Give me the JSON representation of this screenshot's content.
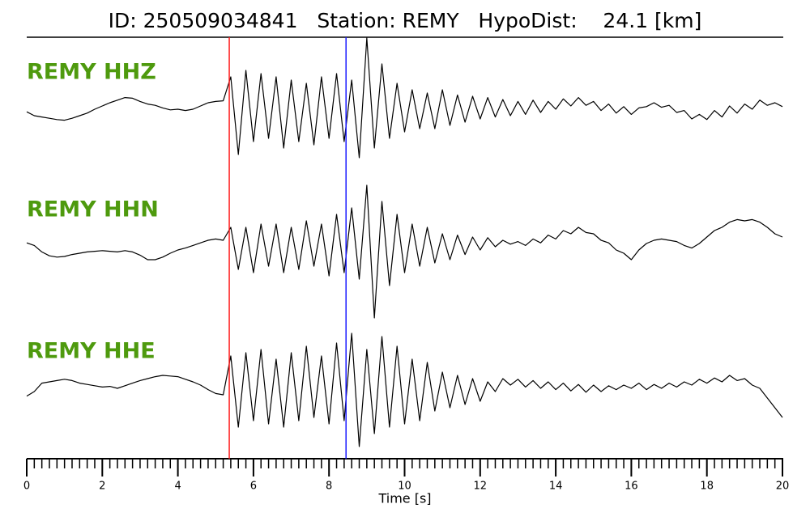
{
  "chart_data": {
    "type": "line",
    "title": "ID: 250509034841   Station: REMY   HypoDist:    24.1 [km]",
    "xlabel": "Time [s]",
    "xlim": [
      0,
      20
    ],
    "xticks": [
      0,
      2,
      4,
      6,
      8,
      10,
      12,
      14,
      16,
      18,
      20
    ],
    "xminor_step": 0.2,
    "label_color": "#4e9a0e",
    "picks": [
      {
        "x": 5.36,
        "color": "#ff1a1a"
      },
      {
        "x": 8.45,
        "color": "#1a1aff"
      }
    ],
    "x": [
      0,
      0.2,
      0.4,
      0.6,
      0.8,
      1.0,
      1.2,
      1.4,
      1.6,
      1.8,
      2.0,
      2.2,
      2.4,
      2.6,
      2.8,
      3.0,
      3.2,
      3.4,
      3.6,
      3.8,
      4.0,
      4.2,
      4.4,
      4.6,
      4.8,
      5.0,
      5.2,
      5.4,
      5.6,
      5.8,
      6.0,
      6.2,
      6.4,
      6.6,
      6.8,
      7.0,
      7.2,
      7.4,
      7.6,
      7.8,
      8.0,
      8.2,
      8.4,
      8.6,
      8.8,
      9.0,
      9.2,
      9.4,
      9.6,
      9.8,
      10.0,
      10.2,
      10.4,
      10.6,
      10.8,
      11.0,
      11.2,
      11.4,
      11.6,
      11.8,
      12.0,
      12.2,
      12.4,
      12.6,
      12.8,
      13.0,
      13.2,
      13.4,
      13.6,
      13.8,
      14.0,
      14.2,
      14.4,
      14.6,
      14.8,
      15.0,
      15.2,
      15.4,
      15.6,
      15.8,
      16.0,
      16.2,
      16.4,
      16.6,
      16.8,
      17.0,
      17.2,
      17.4,
      17.6,
      17.8,
      18.0,
      18.2,
      18.4,
      18.6,
      18.8,
      19.0,
      19.2,
      19.4,
      19.6,
      19.8,
      20.0
    ],
    "series": [
      {
        "name": "REMY HHZ",
        "color": "#000000",
        "values": [
          -0.04,
          -0.1,
          -0.12,
          -0.14,
          -0.16,
          -0.17,
          -0.14,
          -0.1,
          -0.06,
          0,
          0.05,
          0.1,
          0.14,
          0.18,
          0.17,
          0.12,
          0.08,
          0.06,
          0.02,
          -0.01,
          0.0,
          -0.02,
          0.0,
          0.05,
          0.1,
          0.12,
          0.13,
          0.5,
          -0.7,
          0.6,
          -0.5,
          0.55,
          -0.45,
          0.5,
          -0.6,
          0.45,
          -0.5,
          0.4,
          -0.55,
          0.5,
          -0.45,
          0.55,
          -0.5,
          0.45,
          -0.75,
          1.1,
          -0.6,
          0.7,
          -0.45,
          0.4,
          -0.35,
          0.3,
          -0.3,
          0.25,
          -0.3,
          0.3,
          -0.25,
          0.22,
          -0.2,
          0.2,
          -0.15,
          0.18,
          -0.12,
          0.15,
          -0.1,
          0.12,
          -0.08,
          0.14,
          -0.05,
          0.12,
          0.0,
          0.16,
          0.05,
          0.18,
          0.06,
          0.12,
          -0.02,
          0.08,
          -0.06,
          0.04,
          -0.08,
          0.02,
          0.04,
          0.1,
          0.03,
          0.06,
          -0.05,
          -0.02,
          -0.15,
          -0.08,
          -0.16,
          -0.02,
          -0.12,
          0.05,
          -0.06,
          0.08,
          0.0,
          0.14,
          0.06,
          0.1,
          0.04
        ]
      },
      {
        "name": "REMY HHN",
        "color": "#000000",
        "values": [
          0.06,
          0.02,
          -0.08,
          -0.14,
          -0.16,
          -0.15,
          -0.12,
          -0.1,
          -0.08,
          -0.07,
          -0.06,
          -0.07,
          -0.08,
          -0.06,
          -0.08,
          -0.13,
          -0.2,
          -0.2,
          -0.16,
          -0.1,
          -0.05,
          -0.02,
          0.02,
          0.06,
          0.1,
          0.12,
          0.1,
          0.3,
          -0.35,
          0.3,
          -0.4,
          0.35,
          -0.3,
          0.35,
          -0.4,
          0.3,
          -0.35,
          0.4,
          -0.3,
          0.35,
          -0.45,
          0.5,
          -0.4,
          0.6,
          -0.5,
          0.95,
          -1.1,
          0.7,
          -0.6,
          0.5,
          -0.4,
          0.35,
          -0.3,
          0.3,
          -0.25,
          0.2,
          -0.2,
          0.18,
          -0.12,
          0.15,
          -0.05,
          0.14,
          0.0,
          0.1,
          0.04,
          0.08,
          0.02,
          0.12,
          0.06,
          0.18,
          0.12,
          0.25,
          0.2,
          0.3,
          0.22,
          0.2,
          0.1,
          0.06,
          -0.05,
          -0.1,
          -0.2,
          -0.05,
          0.05,
          0.1,
          0.12,
          0.1,
          0.08,
          0.02,
          -0.02,
          0.05,
          0.15,
          0.25,
          0.3,
          0.38,
          0.42,
          0.4,
          0.42,
          0.38,
          0.3,
          0.2,
          0.15
        ]
      },
      {
        "name": "REMY HHE",
        "color": "#000000",
        "values": [
          -0.12,
          -0.05,
          0.08,
          0.1,
          0.12,
          0.14,
          0.12,
          0.08,
          0.06,
          0.04,
          0.02,
          0.03,
          0.0,
          0.04,
          0.08,
          0.12,
          0.15,
          0.18,
          0.2,
          0.19,
          0.18,
          0.14,
          0.1,
          0.05,
          -0.02,
          -0.08,
          -0.1,
          0.5,
          -0.6,
          0.55,
          -0.5,
          0.6,
          -0.55,
          0.45,
          -0.6,
          0.55,
          -0.5,
          0.65,
          -0.45,
          0.5,
          -0.55,
          0.7,
          -0.5,
          0.85,
          -0.9,
          0.6,
          -0.7,
          0.8,
          -0.6,
          0.65,
          -0.55,
          0.45,
          -0.5,
          0.4,
          -0.35,
          0.25,
          -0.3,
          0.2,
          -0.25,
          0.15,
          -0.2,
          0.1,
          -0.05,
          0.15,
          0.05,
          0.14,
          0.02,
          0.12,
          0.0,
          0.1,
          -0.02,
          0.08,
          -0.04,
          0.06,
          -0.06,
          0.05,
          -0.05,
          0.04,
          -0.02,
          0.05,
          0.0,
          0.08,
          -0.02,
          0.06,
          0.0,
          0.08,
          0.02,
          0.1,
          0.05,
          0.14,
          0.08,
          0.16,
          0.1,
          0.2,
          0.12,
          0.15,
          0.05,
          0.0,
          -0.15,
          -0.3,
          -0.45
        ]
      }
    ]
  }
}
